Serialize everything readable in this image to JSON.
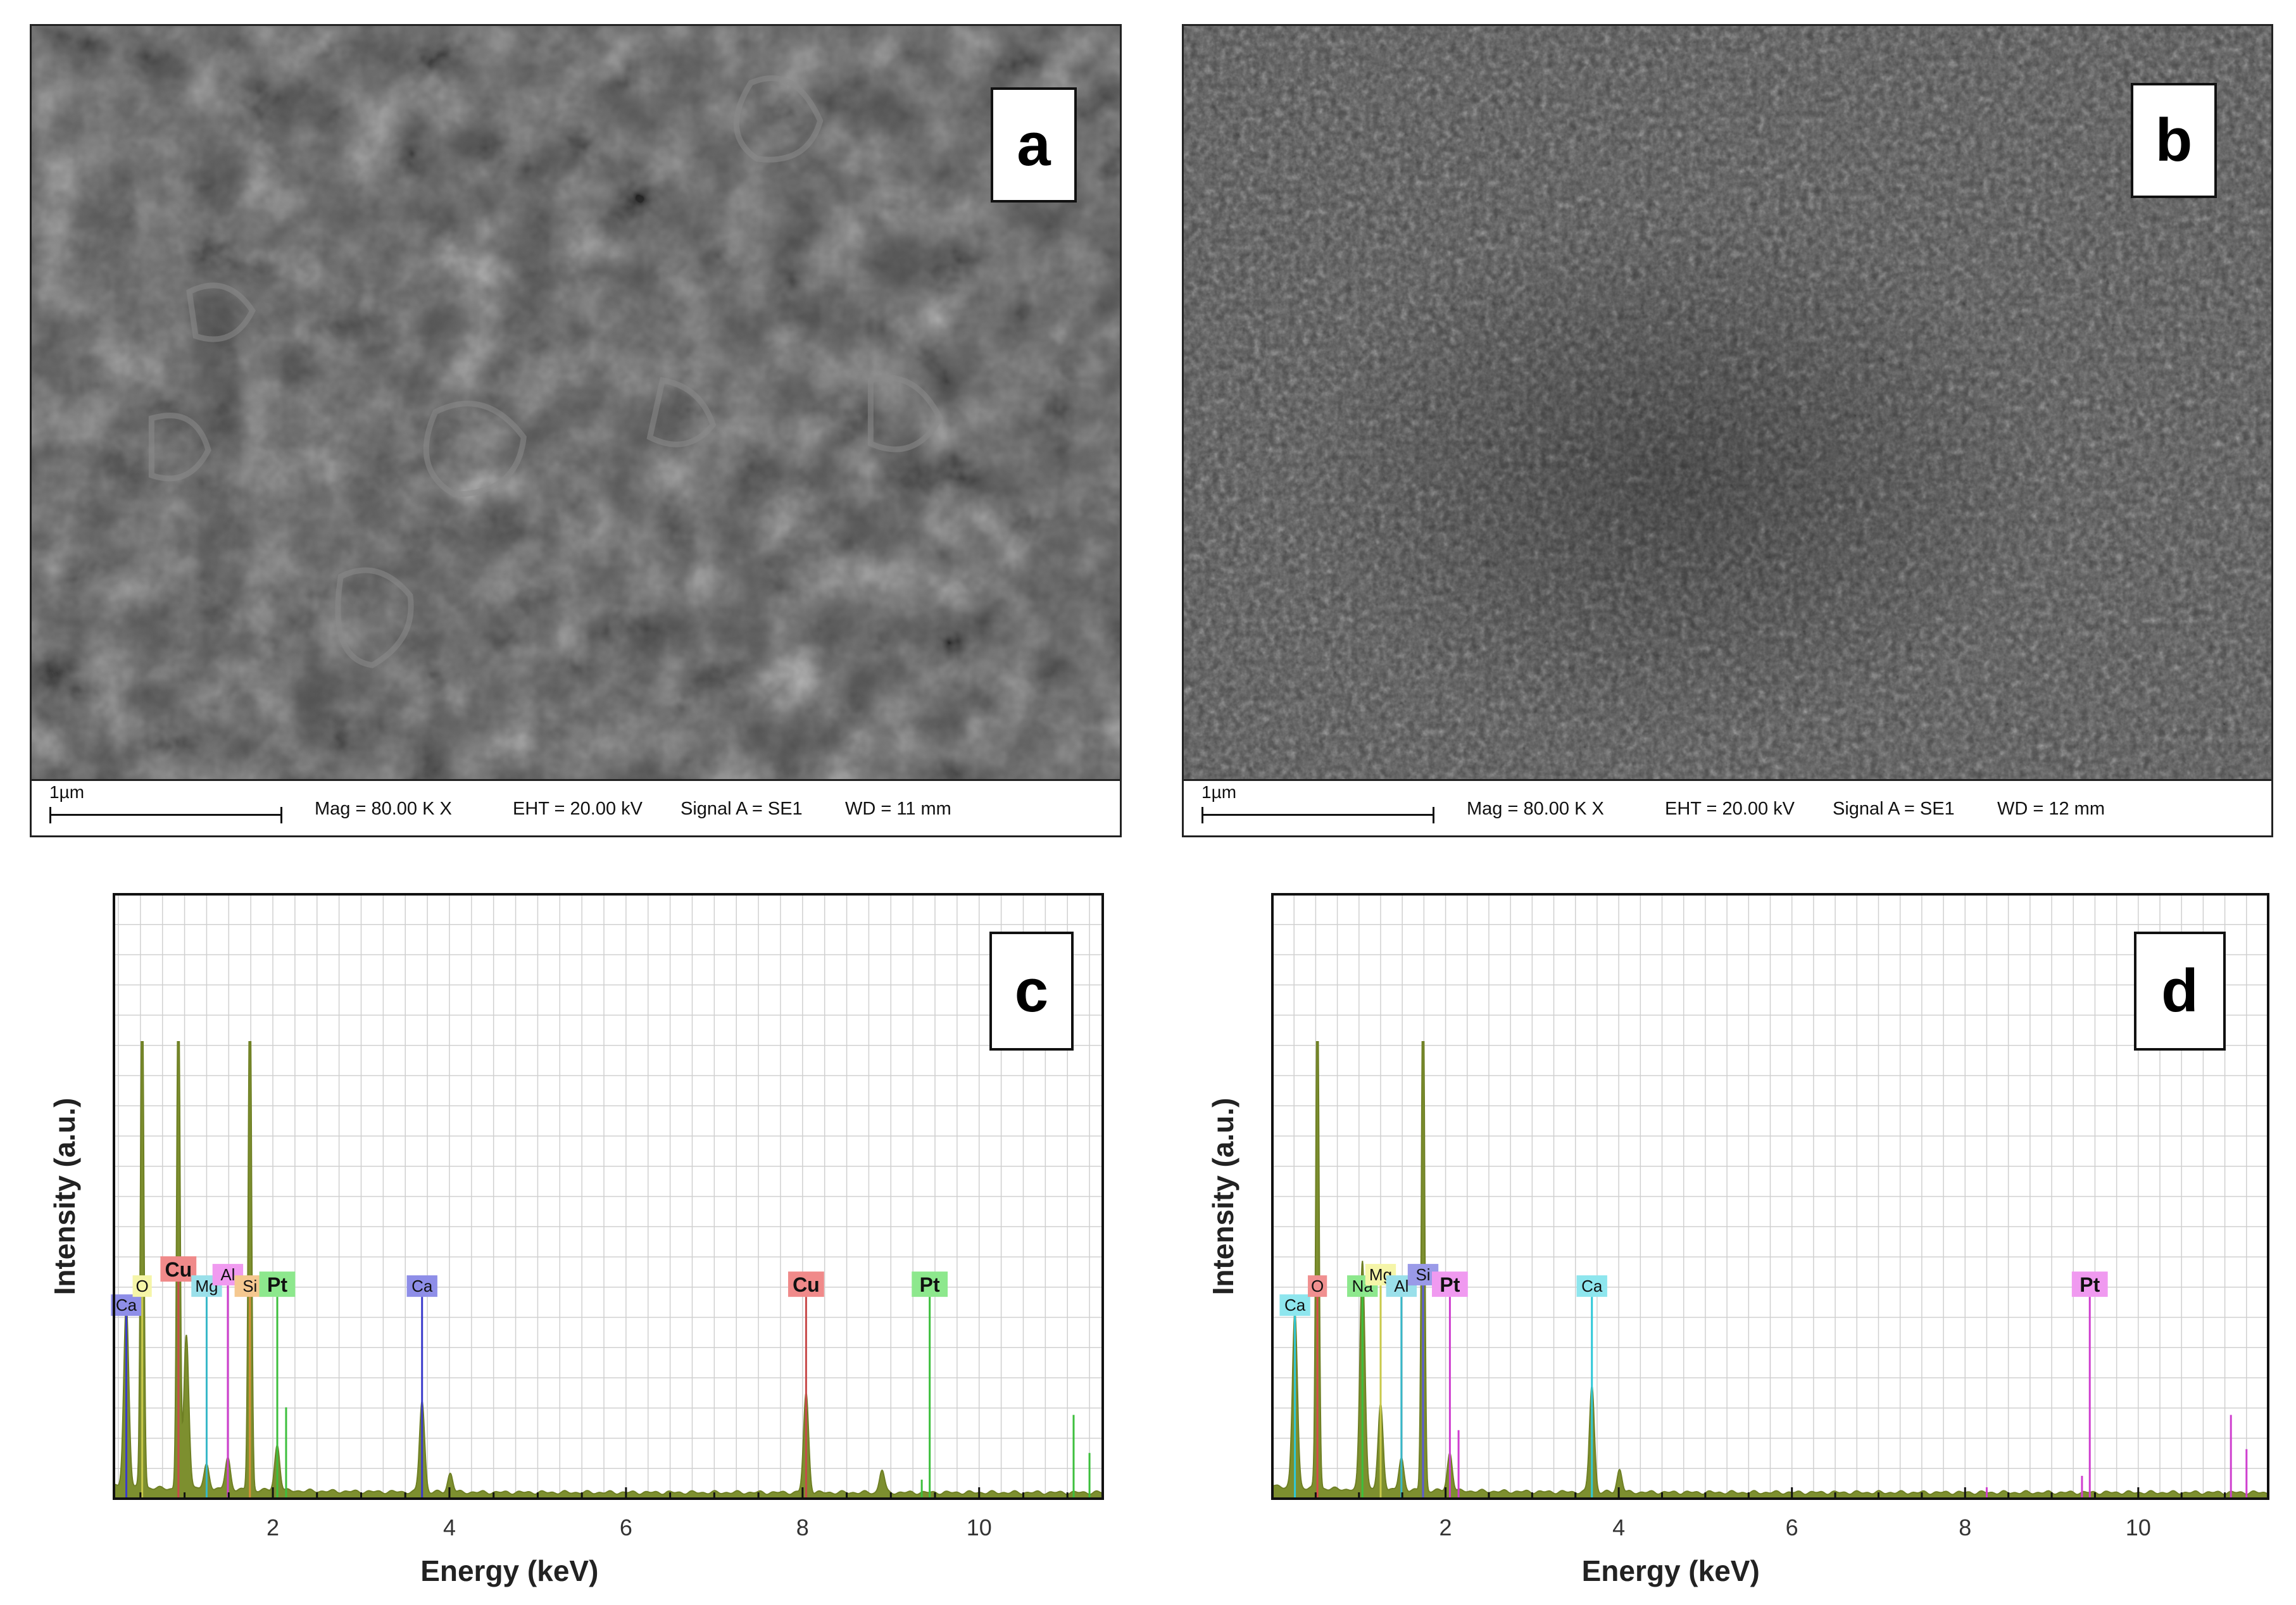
{
  "panels": {
    "a": {
      "letter": "a"
    },
    "b": {
      "letter": "b"
    },
    "c": {
      "letter": "c"
    },
    "d": {
      "letter": "d"
    }
  },
  "sem": [
    {
      "scale": "1µm",
      "mag": "Mag =  80.00 K X",
      "eht": "EHT = 20.00 kV",
      "signal": "Signal A = SE1",
      "wd": "WD =   11 mm"
    },
    {
      "scale": "1µm",
      "mag": "Mag =  80.00 K X",
      "eht": "EHT = 20.00 kV",
      "signal": "Signal A = SE1",
      "wd": "WD =   12 mm"
    }
  ],
  "colors": {
    "spectrum_fill": "#7d8f2f",
    "grid": "#d0d0d0"
  },
  "chart_data": [
    {
      "type": "area",
      "xlabel": "Energy (keV)",
      "ylabel": "Intensity (a.u.)",
      "xlim": [
        0.2,
        11.4
      ],
      "ylim": [
        0,
        100
      ],
      "xticks": [
        2,
        4,
        6,
        8,
        10
      ],
      "tick_labels": [
        "2",
        "4",
        "6",
        "8",
        "10"
      ],
      "grid": true,
      "peaks": [
        {
          "x": 0.34,
          "y": 48
        },
        {
          "x": 0.52,
          "y": 140
        },
        {
          "x": 0.93,
          "y": 140
        },
        {
          "x": 1.02,
          "y": 40
        },
        {
          "x": 1.25,
          "y": 6
        },
        {
          "x": 1.49,
          "y": 8
        },
        {
          "x": 1.74,
          "y": 140
        },
        {
          "x": 2.05,
          "y": 12
        },
        {
          "x": 3.69,
          "y": 24
        },
        {
          "x": 4.01,
          "y": 5
        },
        {
          "x": 8.04,
          "y": 26
        },
        {
          "x": 8.9,
          "y": 6
        }
      ],
      "element_lines": [
        {
          "label": "Ca",
          "x": 0.34,
          "y": 48,
          "color": "#3a3acb",
          "bg": "#8e8ee8",
          "bold": false
        },
        {
          "label": "O",
          "x": 0.52,
          "y": 53,
          "color": "#c8c84a",
          "bg": "#f5f5a8",
          "bold": false
        },
        {
          "label": "Cu",
          "x": 0.93,
          "y": 57,
          "color": "#c84a4a",
          "bg": "#f08a8a",
          "bold": true
        },
        {
          "label": "Mg",
          "x": 1.25,
          "y": 53,
          "color": "#37b7c8",
          "bg": "#9ae0ea",
          "bold": false
        },
        {
          "label": "Al",
          "x": 1.49,
          "y": 56,
          "color": "#cf3fcf",
          "bg": "#f09af0",
          "bold": false
        },
        {
          "label": "Si",
          "x": 1.74,
          "y": 53,
          "color": "#d6903a",
          "bg": "#f5c890",
          "bold": false
        },
        {
          "label": "Pt",
          "x": 2.05,
          "y": 53,
          "color": "#3dbf3d",
          "bg": "#8de88d",
          "bold": true
        },
        {
          "label": "Ca",
          "x": 3.69,
          "y": 53,
          "color": "#3a3acb",
          "bg": "#8e8ee8",
          "bold": false
        },
        {
          "label": "Cu",
          "x": 8.04,
          "y": 53,
          "color": "#c84a4a",
          "bg": "#f08a8a",
          "bold": true
        },
        {
          "label": "Pt",
          "x": 9.44,
          "y": 53,
          "color": "#3dbf3d",
          "bg": "#8de88d",
          "bold": true
        }
      ],
      "extra_lines": [
        {
          "x": 2.15,
          "y": 24,
          "color": "#3dbf3d"
        },
        {
          "x": 9.35,
          "y": 5,
          "color": "#3dbf3d"
        },
        {
          "x": 11.07,
          "y": 22,
          "color": "#3dbf3d"
        },
        {
          "x": 11.25,
          "y": 12,
          "color": "#3dbf3d"
        }
      ]
    },
    {
      "type": "area",
      "xlabel": "Energy (keV)",
      "ylabel": "Intensity (a.u.)",
      "xlim": [
        0.0,
        11.5
      ],
      "ylim": [
        0,
        100
      ],
      "xticks": [
        2,
        4,
        6,
        8,
        10
      ],
      "tick_labels": [
        "2",
        "4",
        "6",
        "8",
        "10"
      ],
      "grid": true,
      "peaks": [
        {
          "x": 0.26,
          "y": 46
        },
        {
          "x": 0.52,
          "y": 140
        },
        {
          "x": 1.04,
          "y": 60
        },
        {
          "x": 1.25,
          "y": 22
        },
        {
          "x": 1.49,
          "y": 8
        },
        {
          "x": 1.74,
          "y": 140
        },
        {
          "x": 2.05,
          "y": 10
        },
        {
          "x": 3.69,
          "y": 28
        },
        {
          "x": 4.01,
          "y": 6
        }
      ],
      "element_lines": [
        {
          "label": "Ca",
          "x": 0.26,
          "y": 48,
          "color": "#2fc8d8",
          "bg": "#8ee6ee",
          "bold": false
        },
        {
          "label": "O",
          "x": 0.52,
          "y": 53,
          "color": "#d84a4a",
          "bg": "#f09090",
          "bold": false
        },
        {
          "label": "Na",
          "x": 1.04,
          "y": 53,
          "color": "#3dbf3d",
          "bg": "#8de88d",
          "bold": false
        },
        {
          "label": "Mg",
          "x": 1.25,
          "y": 56,
          "color": "#c8c84a",
          "bg": "#f5f5a8",
          "bold": false
        },
        {
          "label": "Al",
          "x": 1.49,
          "y": 53,
          "color": "#37b7c8",
          "bg": "#9ae0ea",
          "bold": false
        },
        {
          "label": "Si",
          "x": 1.74,
          "y": 56,
          "color": "#5a5ad8",
          "bg": "#9a9ae8",
          "bold": false
        },
        {
          "label": "Pt",
          "x": 2.05,
          "y": 53,
          "color": "#cf3fcf",
          "bg": "#f09af0",
          "bold": true
        },
        {
          "label": "Ca",
          "x": 3.69,
          "y": 53,
          "color": "#2fc8d8",
          "bg": "#8ee6ee",
          "bold": false
        },
        {
          "label": "Pt",
          "x": 9.44,
          "y": 53,
          "color": "#cf3fcf",
          "bg": "#f09af0",
          "bold": true
        }
      ],
      "extra_lines": [
        {
          "x": 2.15,
          "y": 18,
          "color": "#cf3fcf"
        },
        {
          "x": 8.25,
          "y": 3,
          "color": "#cf3fcf"
        },
        {
          "x": 9.35,
          "y": 6,
          "color": "#cf3fcf"
        },
        {
          "x": 11.07,
          "y": 22,
          "color": "#cf3fcf"
        },
        {
          "x": 11.25,
          "y": 13,
          "color": "#cf3fcf"
        }
      ]
    }
  ]
}
